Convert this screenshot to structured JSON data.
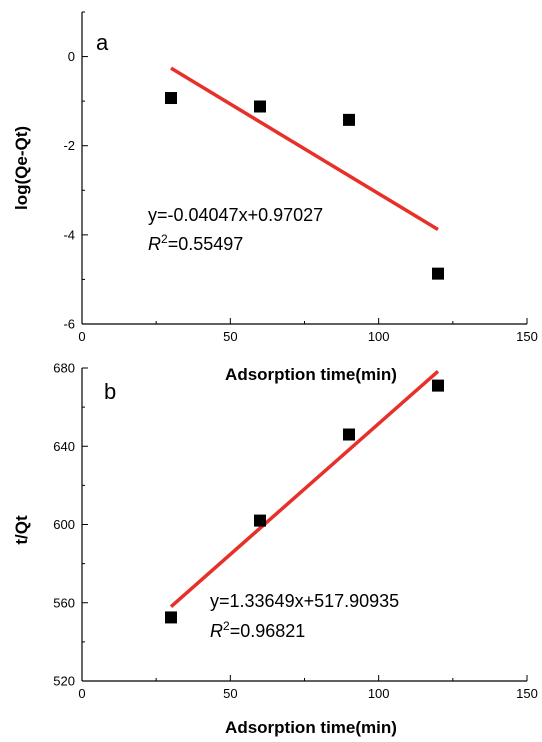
{
  "chart_data": [
    {
      "type": "scatter",
      "panel_label": "a",
      "xlabel": "Adsorption time(min)",
      "ylabel": "log(Qe-Qt)",
      "xlim": [
        0,
        150
      ],
      "ylim": [
        -6,
        1
      ],
      "x_ticks": [
        0,
        50,
        100,
        150
      ],
      "y_ticks": [
        0,
        -2,
        -4,
        -6
      ],
      "x_tick_labels": [
        "0",
        "50",
        "100",
        "150"
      ],
      "y_tick_labels": [
        "0",
        "-2",
        "-4",
        "-6"
      ],
      "points": [
        {
          "x": 30,
          "y": -0.93
        },
        {
          "x": 60,
          "y": -1.12
        },
        {
          "x": 90,
          "y": -1.42
        },
        {
          "x": 120,
          "y": -4.87
        }
      ],
      "fit_line": {
        "x": [
          30,
          120
        ],
        "y": [
          -0.26,
          -3.88
        ]
      },
      "equation": "y=-0.04047x+0.97027",
      "r2_symbol": "R",
      "r2_exponent": "2",
      "r2_value": "=0.55497"
    },
    {
      "type": "scatter",
      "panel_label": "b",
      "xlabel": "Adsorption time(min)",
      "ylabel": "t/Qt",
      "xlim": [
        0,
        150
      ],
      "ylim": [
        520,
        680
      ],
      "x_ticks": [
        0,
        50,
        100,
        150
      ],
      "y_ticks": [
        520,
        560,
        600,
        640,
        680
      ],
      "x_tick_labels": [
        "0",
        "50",
        "100",
        "150"
      ],
      "y_tick_labels": [
        "520",
        "560",
        "600",
        "640",
        "680"
      ],
      "points": [
        {
          "x": 30,
          "y": 552.5
        },
        {
          "x": 60,
          "y": 602.0
        },
        {
          "x": 90,
          "y": 646.0
        },
        {
          "x": 120,
          "y": 671.0
        }
      ],
      "fit_line": {
        "x": [
          30,
          120
        ],
        "y": [
          558.0,
          678.3
        ]
      },
      "equation": "y=1.33649x+517.90935",
      "r2_symbol": "R",
      "r2_exponent": "2",
      "r2_value": "=0.96821"
    }
  ]
}
